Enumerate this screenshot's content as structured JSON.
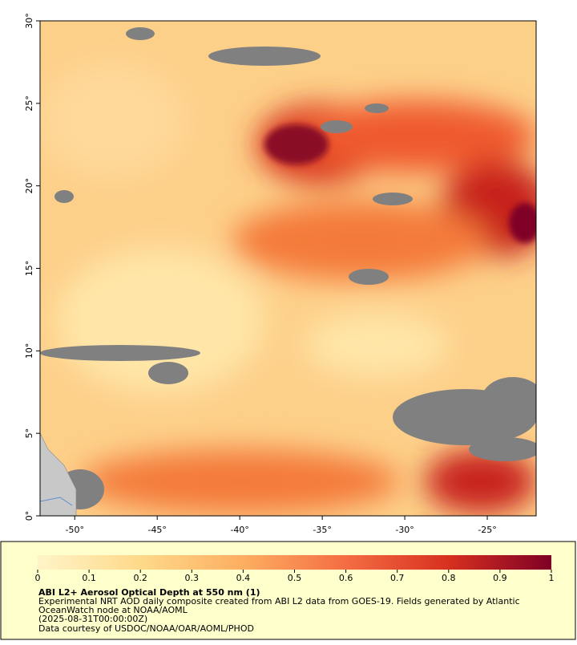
{
  "map": {
    "xlim": [
      -52.1,
      -22.04
    ],
    "ylim": [
      0,
      30
    ],
    "xticks": [
      {
        "value": -50,
        "label": "-50°"
      },
      {
        "value": -45,
        "label": "-45°"
      },
      {
        "value": -40,
        "label": "-40°"
      },
      {
        "value": -35,
        "label": "-35°"
      },
      {
        "value": -30,
        "label": "-30°"
      },
      {
        "value": -25,
        "label": "-25°"
      }
    ],
    "yticks": [
      {
        "value": 0,
        "label": "0°"
      },
      {
        "value": 5,
        "label": "5°"
      },
      {
        "value": 10,
        "label": "10°"
      },
      {
        "value": 15,
        "label": "15°"
      },
      {
        "value": 20,
        "label": "20°"
      },
      {
        "value": 25,
        "label": "25°"
      },
      {
        "value": 30,
        "label": "30°"
      }
    ]
  },
  "colorbar": {
    "range": [
      0,
      1
    ],
    "ticks": [
      0,
      0.1,
      0.2,
      0.3,
      0.4,
      0.5,
      0.6,
      0.7,
      0.8,
      0.9,
      1
    ],
    "colors": [
      "#fff4c8",
      "#fed98a",
      "#fdae61",
      "#f46d43",
      "#d7301f",
      "#7f0026"
    ]
  },
  "legend": {
    "title": "ABI L2+ Aerosol Optical Depth at 550 nm (1)",
    "lines": [
      "Experimental NRT AOD daily composite created from ABI L2 data from GOES-19. Fields generated by Atlantic",
      "OceanWatch node at NOAA/AOML",
      "(2025-08-31T00:00:00Z)",
      "Data courtesy of USDOC/NOAA/OAR/AOML/PHOD"
    ]
  }
}
